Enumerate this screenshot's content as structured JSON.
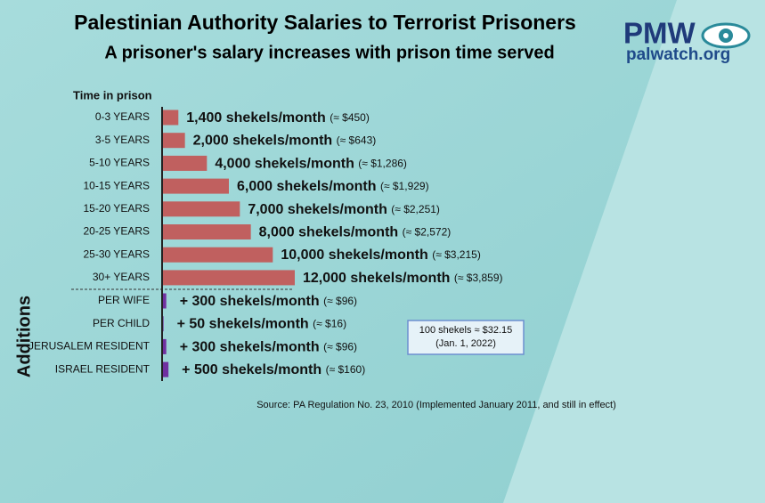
{
  "chart_data": {
    "type": "bar",
    "orientation": "horizontal",
    "title": "Palestinian Authority Salaries to Terrorist Prisoners",
    "subtitle": "A prisoner's salary increases with prison time served",
    "logo": {
      "name": "PMW",
      "site": "palwatch.org"
    },
    "series": [
      {
        "name": "Time in prison",
        "color": "#c0605f",
        "categories": [
          "0-3 YEARS",
          "3-5 YEARS",
          "5-10 YEARS",
          "10-15 YEARS",
          "15-20 YEARS",
          "20-25 YEARS",
          "25-30 YEARS",
          "30+ YEARS"
        ],
        "values": [
          1400,
          2000,
          4000,
          6000,
          7000,
          8000,
          10000,
          12000
        ],
        "value_labels": [
          "1,400 shekels/month",
          "2,000 shekels/month",
          "4,000 shekels/month",
          "6,000 shekels/month",
          "7,000 shekels/month",
          "8,000 shekels/month",
          "10,000 shekels/month",
          "12,000 shekels/month"
        ],
        "usd_labels": [
          "(≈ $450)",
          "(≈ $643)",
          "(≈ $1,286)",
          "(≈ $1,929)",
          "(≈ $2,251)",
          "(≈ $2,572)",
          "(≈ $3,215)",
          "(≈ $3,859)"
        ]
      },
      {
        "name": "Additions",
        "color": "#7030a0",
        "categories": [
          "PER WIFE",
          "PER CHILD",
          "JERUSALEM RESIDENT",
          "ISRAEL RESIDENT"
        ],
        "values": [
          300,
          50,
          300,
          500
        ],
        "value_labels": [
          "+ 300 shekels/month",
          "+ 50 shekels/month",
          "+ 300 shekels/month",
          "+ 500 shekels/month"
        ],
        "usd_labels": [
          "(≈ $96)",
          "(≈ $16)",
          "(≈ $96)",
          "(≈ $160)"
        ]
      }
    ],
    "note": [
      "100 shekels ≈ $32.15",
      "(Jan. 1, 2022)"
    ],
    "source": "Source: PA Regulation No. 23, 2010 (Implemented January 2011, and still in effect)"
  }
}
